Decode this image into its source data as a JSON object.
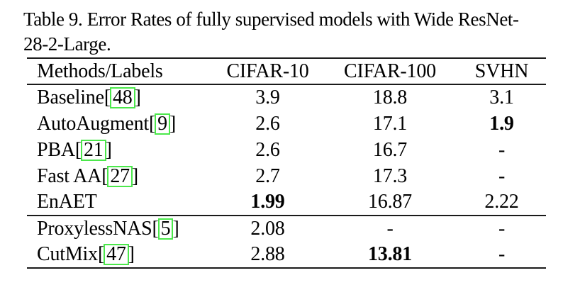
{
  "caption": {
    "line1": "Table 9. Error Rates of fully supervised models with Wide ResNet-",
    "line2": "28-2-Large."
  },
  "table": {
    "columns": [
      "Methods/Labels",
      "CIFAR-10",
      "CIFAR-100",
      "SVHN"
    ],
    "bracket_open": "[",
    "bracket_close": "]",
    "groups": [
      {
        "rows": [
          {
            "method": "Baseline",
            "citation": "48",
            "values": [
              {
                "text": "3.9",
                "bold": false
              },
              {
                "text": "18.8",
                "bold": false
              },
              {
                "text": "3.1",
                "bold": false
              }
            ]
          },
          {
            "method": "AutoAugment",
            "citation": "9",
            "values": [
              {
                "text": "2.6",
                "bold": false
              },
              {
                "text": "17.1",
                "bold": false
              },
              {
                "text": "1.9",
                "bold": true
              }
            ]
          },
          {
            "method": "PBA",
            "citation": "21",
            "values": [
              {
                "text": "2.6",
                "bold": false
              },
              {
                "text": "16.7",
                "bold": false
              },
              {
                "text": "-",
                "bold": false
              }
            ]
          },
          {
            "method": "Fast AA",
            "citation": "27",
            "values": [
              {
                "text": "2.7",
                "bold": false
              },
              {
                "text": "17.3",
                "bold": false
              },
              {
                "text": "-",
                "bold": false
              }
            ]
          },
          {
            "method": "EnAET",
            "citation": null,
            "values": [
              {
                "text": "1.99",
                "bold": true
              },
              {
                "text": "16.87",
                "bold": false
              },
              {
                "text": "2.22",
                "bold": false
              }
            ]
          }
        ]
      },
      {
        "rows": [
          {
            "method": "ProxylessNAS",
            "citation": "5",
            "values": [
              {
                "text": "2.08",
                "bold": false
              },
              {
                "text": "-",
                "bold": false
              },
              {
                "text": "-",
                "bold": false
              }
            ]
          },
          {
            "method": "CutMix",
            "citation": "47",
            "values": [
              {
                "text": "2.88",
                "bold": false
              },
              {
                "text": "13.81",
                "bold": true
              },
              {
                "text": "-",
                "bold": false
              }
            ]
          }
        ]
      }
    ]
  },
  "colors": {
    "text": "#000000",
    "background": "#ffffff",
    "rule": "#1a1a1a",
    "citation_box": "#4be84b"
  }
}
